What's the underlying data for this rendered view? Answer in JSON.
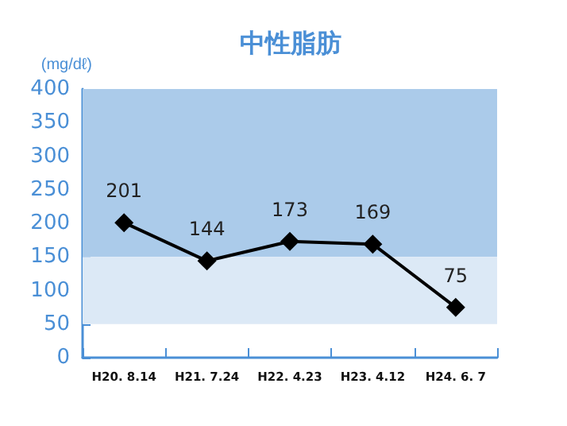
{
  "chart_data": {
    "type": "line",
    "title": "中性脂肪",
    "ylabel": "(mg/dℓ)",
    "categories": [
      "H20. 8.14",
      "H21. 7.24",
      "H22. 4.23",
      "H23. 4.12",
      "H24. 6. 7"
    ],
    "values": [
      201,
      144,
      173,
      169,
      75
    ],
    "color": "#000000",
    "marker": "diamond",
    "line_style": "solid",
    "data_labels": true,
    "ylim": [
      0,
      400
    ],
    "yticks": [
      0,
      50,
      100,
      150,
      200,
      250,
      300,
      350,
      400
    ],
    "grid": false,
    "bands": [
      {
        "axis": "y",
        "from": 150,
        "to": 400,
        "color": "#abcbea"
      },
      {
        "axis": "y",
        "from": 50,
        "to": 150,
        "color": "#dce9f6"
      }
    ]
  }
}
